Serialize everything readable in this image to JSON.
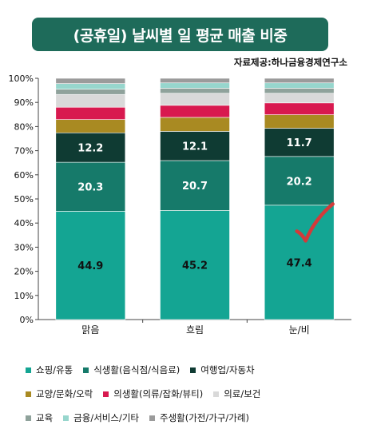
{
  "title": "(공휴일) 날씨별 일 평균 매출 비중",
  "source": "자료제공:하나금융경제연구소",
  "chart_data": {
    "type": "bar",
    "stacked": true,
    "categories": [
      "맑음",
      "흐림",
      "눈/비"
    ],
    "y_ticks": [
      "0%",
      "10%",
      "20%",
      "30%",
      "40%",
      "50%",
      "60%",
      "70%",
      "80%",
      "90%",
      "100%"
    ],
    "ylim": [
      0,
      100
    ],
    "grid": false,
    "legend_position": "bottom",
    "series": [
      {
        "name": "쇼핑/유통",
        "color": "#14a593",
        "values": [
          44.9,
          45.2,
          47.4
        ],
        "labels": [
          "44.9",
          "45.2",
          "47.4"
        ],
        "label_color": "#111111"
      },
      {
        "name": "식생활(음식점/식음료)",
        "color": "#167a6a",
        "values": [
          20.3,
          20.7,
          20.2
        ],
        "labels": [
          "20.3",
          "20.7",
          "20.2"
        ],
        "label_color": "#ffffff"
      },
      {
        "name": "여행업/자동차",
        "color": "#0f3b33",
        "values": [
          12.2,
          12.1,
          11.7
        ],
        "labels": [
          "12.2",
          "12.1",
          "11.7"
        ],
        "label_color": "#ffffff"
      },
      {
        "name": "교양/문화/오락",
        "color": "#a98a22",
        "values": [
          5.5,
          5.8,
          5.6
        ]
      },
      {
        "name": "의생활(의류/잡화/뷰티)",
        "color": "#d8194f",
        "values": [
          5.1,
          5.0,
          4.9
        ]
      },
      {
        "name": "의료/보건",
        "color": "#d9d9d9",
        "values": [
          5.3,
          5.0,
          4.0
        ]
      },
      {
        "name": "교육",
        "color": "#8fa29b",
        "values": [
          2.2,
          2.1,
          2.1
        ]
      },
      {
        "name": "금융/서비스/기타",
        "color": "#97d6cd",
        "values": [
          2.3,
          2.2,
          2.2
        ]
      },
      {
        "name": "주생활(가전/가구/가례)",
        "color": "#9b9b9b",
        "values": [
          2.2,
          1.9,
          1.9
        ]
      }
    ],
    "annotation": {
      "type": "checkmark",
      "category": "눈/비",
      "color": "#d33a3a"
    }
  }
}
